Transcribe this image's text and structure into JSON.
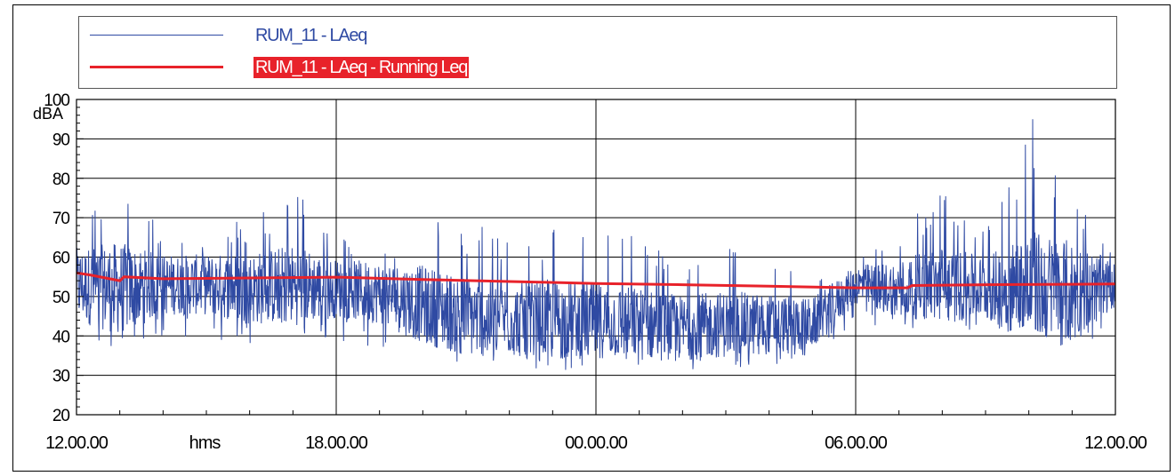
{
  "chart_data": {
    "type": "line",
    "ylabel": "dBA",
    "xlabel": "hms",
    "ylim": [
      20,
      100
    ],
    "yticks": [
      20,
      30,
      40,
      50,
      60,
      70,
      80,
      90,
      100
    ],
    "x_ticks": [
      "12.00.00",
      "18.00.00",
      "00.00.00",
      "06.00.00",
      "12.00.00"
    ],
    "x_range_hours": [
      0,
      24
    ],
    "grid": true,
    "legend_position": "top",
    "series": [
      {
        "name": "RUM_11 - LAeq",
        "color": "#2f4aa3",
        "x_hours": [
          0,
          1,
          2,
          3,
          4,
          5,
          6,
          7,
          8,
          9,
          10,
          11,
          12,
          13,
          14,
          15,
          16,
          17,
          18,
          19,
          20,
          21,
          22,
          23,
          24
        ],
        "upper": [
          72,
          79,
          68,
          66,
          71,
          78,
          66,
          64,
          70,
          70,
          67,
          69,
          67,
          66,
          61,
          63,
          60,
          57,
          62,
          66,
          80,
          68,
          98,
          83,
          62
        ],
        "lower": [
          38,
          36,
          40,
          38,
          38,
          40,
          39,
          35,
          34,
          32,
          33,
          31,
          32,
          32,
          31,
          32,
          32,
          33,
          44,
          40,
          44,
          39,
          43,
          35,
          42
        ],
        "typical": [
          53,
          52,
          53,
          53,
          52,
          53,
          52,
          51,
          48,
          45,
          44,
          44,
          44,
          43,
          42,
          43,
          43,
          43,
          53,
          52,
          53,
          52,
          52,
          51,
          53
        ]
      },
      {
        "name": "RUM_11 - LAeq - Running Leq",
        "color": "#e8222a",
        "x_hours": [
          0,
          0.3,
          1.0,
          1.1,
          2,
          4,
          6,
          8,
          10,
          12,
          14,
          16,
          18,
          19.2,
          19.3,
          21,
          23,
          24
        ],
        "values": [
          56,
          55.5,
          54,
          55,
          54.5,
          54.7,
          54.9,
          54.3,
          53.8,
          53.3,
          53,
          52.6,
          52.2,
          52.2,
          52.8,
          53,
          53.1,
          53.2
        ]
      }
    ]
  }
}
